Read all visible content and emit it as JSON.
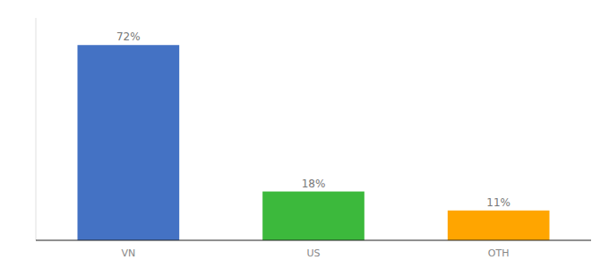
{
  "chart_data": {
    "type": "bar",
    "categories": [
      "VN",
      "US",
      "OTH"
    ],
    "values": [
      72,
      18,
      11
    ],
    "value_labels": [
      "72%",
      "18%",
      "11%"
    ],
    "colors": [
      "#4472C4",
      "#3CB93C",
      "#FFA500"
    ],
    "ylim": [
      0,
      82
    ],
    "data_labels": true,
    "tick_labels": "x",
    "grid": false
  }
}
